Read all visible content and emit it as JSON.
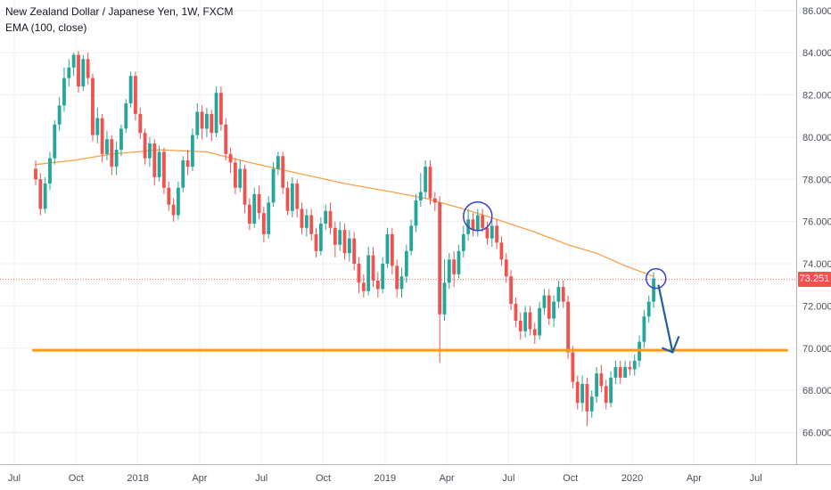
{
  "legend": {
    "title": "New Zealand Dollar / Japanese Yen, 1W, FXCM",
    "indicator": "EMA (100, close)"
  },
  "current_price": {
    "label": "73.251",
    "value": 73.251,
    "color": "#ef5350"
  },
  "colors": {
    "up": "#26a69a",
    "down": "#ef5350",
    "ema": "#f7a14a",
    "support": "#f59c1a",
    "circle": "#3b3fd0",
    "arrow": "#1d5ea8",
    "grid": "#eef0f3",
    "axis_text": "#4a4f5a"
  },
  "chart_data": {
    "type": "candlestick",
    "title": "New Zealand Dollar / Japanese Yen, 1W, FXCM",
    "ylim": [
      64.5,
      86.5
    ],
    "y_ticks": [
      "66.000",
      "68.000",
      "70.000",
      "72.000",
      "74.000",
      "76.000",
      "78.000",
      "80.000",
      "82.000",
      "84.000",
      "86.000"
    ],
    "x_ticks": [
      "Jul",
      "Oct",
      "2018",
      "Apr",
      "Jul",
      "Oct",
      "2019",
      "Apr",
      "Jul",
      "Oct",
      "2020",
      "Apr",
      "Jul"
    ],
    "x_range_weeks": [
      -7.5,
      160
    ],
    "candles": [
      [
        0,
        78.5,
        78.0,
        78.9,
        77.7
      ],
      [
        1,
        78.0,
        76.6,
        78.3,
        76.3
      ],
      [
        2,
        76.6,
        77.8,
        78.1,
        76.4
      ],
      [
        3,
        77.8,
        79.0,
        79.3,
        77.5
      ],
      [
        4,
        79.0,
        80.6,
        80.8,
        78.7
      ],
      [
        5,
        80.6,
        81.5,
        81.9,
        80.3
      ],
      [
        6,
        81.5,
        82.8,
        83.3,
        81.2
      ],
      [
        7,
        82.8,
        83.3,
        83.7,
        82.4
      ],
      [
        8,
        83.3,
        83.9,
        84.0,
        82.9
      ],
      [
        9,
        83.9,
        82.4,
        84.1,
        82.1
      ],
      [
        10,
        82.4,
        83.7,
        83.9,
        82.2
      ],
      [
        11,
        83.7,
        82.8,
        84.0,
        82.5
      ],
      [
        12,
        82.8,
        80.1,
        83.0,
        79.8
      ],
      [
        13,
        80.1,
        80.9,
        81.4,
        79.7
      ],
      [
        14,
        80.9,
        79.2,
        81.1,
        78.8
      ],
      [
        15,
        79.2,
        79.9,
        80.3,
        78.9
      ],
      [
        16,
        79.9,
        78.6,
        80.1,
        78.2
      ],
      [
        17,
        78.6,
        79.4,
        79.8,
        78.2
      ],
      [
        18,
        79.4,
        80.4,
        80.6,
        79.1
      ],
      [
        19,
        80.4,
        81.6,
        81.8,
        80.2
      ],
      [
        20,
        81.6,
        82.9,
        83.1,
        81.4
      ],
      [
        21,
        82.9,
        81.1,
        83.1,
        80.8
      ],
      [
        22,
        81.1,
        80.2,
        81.4,
        79.9
      ],
      [
        23,
        80.2,
        79.0,
        80.4,
        78.7
      ],
      [
        24,
        79.0,
        79.7,
        80.0,
        78.6
      ],
      [
        25,
        79.7,
        78.1,
        79.9,
        77.7
      ],
      [
        26,
        78.1,
        79.3,
        79.6,
        77.9
      ],
      [
        27,
        79.3,
        77.6,
        79.5,
        77.3
      ],
      [
        28,
        77.6,
        76.8,
        77.9,
        76.5
      ],
      [
        29,
        76.8,
        76.3,
        77.1,
        76.0
      ],
      [
        30,
        76.3,
        77.6,
        77.9,
        76.1
      ],
      [
        31,
        77.6,
        78.9,
        79.1,
        77.4
      ],
      [
        32,
        78.9,
        78.6,
        79.4,
        78.2
      ],
      [
        33,
        78.6,
        80.1,
        80.4,
        78.4
      ],
      [
        34,
        80.1,
        81.2,
        81.6,
        79.9
      ],
      [
        35,
        81.2,
        80.4,
        81.5,
        79.9
      ],
      [
        36,
        80.4,
        81.1,
        81.4,
        80.0
      ],
      [
        37,
        81.1,
        80.2,
        81.3,
        79.8
      ],
      [
        38,
        80.2,
        82.1,
        82.4,
        80.0
      ],
      [
        39,
        82.1,
        80.6,
        82.4,
        80.3
      ],
      [
        40,
        80.6,
        79.2,
        80.9,
        78.9
      ],
      [
        41,
        79.2,
        78.8,
        79.5,
        78.3
      ],
      [
        42,
        78.8,
        77.6,
        79.0,
        77.3
      ],
      [
        43,
        77.6,
        78.5,
        78.9,
        77.4
      ],
      [
        44,
        78.5,
        76.8,
        78.7,
        76.4
      ],
      [
        45,
        76.8,
        75.9,
        77.1,
        75.6
      ],
      [
        46,
        75.9,
        77.3,
        77.6,
        75.7
      ],
      [
        47,
        77.3,
        76.4,
        77.7,
        76.1
      ],
      [
        48,
        76.4,
        75.4,
        76.7,
        75.0
      ],
      [
        49,
        75.4,
        76.9,
        77.2,
        75.2
      ],
      [
        50,
        76.9,
        78.5,
        78.8,
        76.7
      ],
      [
        51,
        78.5,
        79.1,
        79.3,
        78.2
      ],
      [
        52,
        79.1,
        77.6,
        79.3,
        77.3
      ],
      [
        53,
        77.6,
        76.5,
        77.9,
        76.3
      ],
      [
        54,
        76.5,
        77.8,
        78.1,
        76.2
      ],
      [
        55,
        77.8,
        76.6,
        78.0,
        76.2
      ],
      [
        56,
        76.6,
        75.7,
        76.9,
        75.4
      ],
      [
        57,
        75.7,
        76.3,
        76.6,
        75.3
      ],
      [
        58,
        76.3,
        75.4,
        76.6,
        75.1
      ],
      [
        59,
        75.4,
        74.6,
        75.7,
        74.3
      ],
      [
        60,
        74.6,
        75.9,
        76.2,
        74.4
      ],
      [
        61,
        75.9,
        76.5,
        76.8,
        75.6
      ],
      [
        62,
        76.5,
        75.7,
        76.9,
        75.4
      ],
      [
        63,
        75.7,
        74.9,
        76.0,
        74.3
      ],
      [
        64,
        74.9,
        75.6,
        76.0,
        74.6
      ],
      [
        65,
        75.6,
        74.5,
        75.9,
        74.2
      ],
      [
        66,
        74.5,
        75.2,
        75.6,
        74.1
      ],
      [
        67,
        75.2,
        74.0,
        75.5,
        73.7
      ],
      [
        68,
        74.0,
        73.1,
        74.3,
        72.6
      ],
      [
        69,
        73.1,
        72.7,
        73.5,
        72.4
      ],
      [
        70,
        72.7,
        74.4,
        74.8,
        72.5
      ],
      [
        71,
        74.4,
        73.2,
        74.8,
        72.9
      ],
      [
        72,
        73.2,
        72.8,
        73.6,
        72.4
      ],
      [
        73,
        72.8,
        74.0,
        74.3,
        72.6
      ],
      [
        74,
        74.0,
        75.4,
        75.7,
        73.8
      ],
      [
        75,
        75.4,
        73.9,
        75.7,
        73.5
      ],
      [
        76,
        73.9,
        72.8,
        74.2,
        72.4
      ],
      [
        77,
        72.8,
        73.4,
        73.8,
        72.4
      ],
      [
        78,
        73.4,
        74.6,
        74.9,
        73.1
      ],
      [
        79,
        74.6,
        75.8,
        76.1,
        74.4
      ],
      [
        80,
        75.8,
        77.0,
        77.3,
        75.5
      ],
      [
        81,
        77.0,
        77.4,
        78.3,
        76.7
      ],
      [
        82,
        77.4,
        78.6,
        78.9,
        77.1
      ],
      [
        83,
        78.6,
        77.1,
        78.9,
        76.8
      ],
      [
        84,
        77.1,
        76.9,
        77.4,
        76.5
      ],
      [
        85,
        76.9,
        71.6,
        77.2,
        69.3
      ],
      [
        86,
        71.6,
        73.1,
        74.2,
        71.3
      ],
      [
        87,
        73.1,
        74.2,
        74.5,
        72.8
      ],
      [
        88,
        74.2,
        73.5,
        74.6,
        72.9
      ],
      [
        89,
        73.5,
        74.6,
        74.9,
        73.3
      ],
      [
        90,
        74.6,
        75.4,
        75.8,
        74.3
      ],
      [
        91,
        75.4,
        76.1,
        76.6,
        75.1
      ],
      [
        92,
        76.1,
        75.6,
        76.4,
        75.3
      ],
      [
        93,
        75.6,
        76.3,
        76.6,
        75.3
      ],
      [
        94,
        76.3,
        75.7,
        76.6,
        75.5
      ],
      [
        95,
        75.7,
        75.2,
        76.0,
        74.9
      ],
      [
        96,
        75.2,
        75.8,
        76.1,
        74.8
      ],
      [
        97,
        75.8,
        75.0,
        76.1,
        74.7
      ],
      [
        98,
        75.0,
        74.2,
        75.3,
        73.9
      ],
      [
        99,
        74.2,
        73.4,
        74.5,
        73.1
      ],
      [
        100,
        73.4,
        72.1,
        73.7,
        71.8
      ],
      [
        101,
        72.1,
        71.3,
        72.4,
        71.0
      ],
      [
        102,
        71.3,
        70.8,
        71.7,
        70.4
      ],
      [
        103,
        70.8,
        71.7,
        72.0,
        70.5
      ],
      [
        104,
        71.7,
        70.9,
        72.0,
        70.6
      ],
      [
        105,
        70.9,
        70.6,
        71.2,
        70.2
      ],
      [
        106,
        70.6,
        71.9,
        72.2,
        70.4
      ],
      [
        107,
        71.9,
        72.5,
        72.8,
        71.6
      ],
      [
        108,
        72.5,
        71.4,
        72.8,
        71.1
      ],
      [
        109,
        71.4,
        72.2,
        72.5,
        71.0
      ],
      [
        110,
        72.2,
        72.9,
        73.2,
        71.9
      ],
      [
        111,
        72.9,
        72.2,
        73.2,
        71.9
      ],
      [
        112,
        72.2,
        69.8,
        72.5,
        69.5
      ],
      [
        113,
        69.8,
        68.4,
        70.1,
        68.1
      ],
      [
        114,
        68.4,
        67.4,
        68.7,
        67.1
      ],
      [
        115,
        67.4,
        68.3,
        68.7,
        67.0
      ],
      [
        116,
        68.3,
        67.0,
        68.6,
        66.3
      ],
      [
        117,
        67.0,
        67.7,
        68.0,
        66.7
      ],
      [
        118,
        67.7,
        68.8,
        69.1,
        67.4
      ],
      [
        119,
        68.8,
        68.2,
        69.2,
        67.9
      ],
      [
        120,
        68.2,
        67.4,
        68.5,
        67.1
      ],
      [
        121,
        67.4,
        68.6,
        68.9,
        67.2
      ],
      [
        122,
        68.6,
        69.1,
        69.4,
        68.3
      ],
      [
        123,
        69.1,
        68.6,
        69.4,
        68.3
      ],
      [
        124,
        68.6,
        69.1,
        69.4,
        68.8
      ],
      [
        125,
        69.1,
        69.0,
        69.4,
        68.7
      ],
      [
        126,
        69.0,
        69.4,
        69.7,
        68.7
      ],
      [
        127,
        69.4,
        70.3,
        70.6,
        69.1
      ],
      [
        128,
        70.3,
        71.5,
        71.8,
        70.0
      ],
      [
        129,
        71.5,
        72.2,
        72.5,
        71.2
      ],
      [
        130,
        72.2,
        73.3,
        73.6,
        71.9
      ]
    ],
    "ema": [
      [
        0,
        78.7
      ],
      [
        8,
        78.9
      ],
      [
        16,
        79.2
      ],
      [
        26,
        79.4
      ],
      [
        36,
        79.3
      ],
      [
        45,
        78.8
      ],
      [
        55,
        78.3
      ],
      [
        65,
        77.8
      ],
      [
        75,
        77.4
      ],
      [
        82,
        77.1
      ],
      [
        90,
        76.6
      ],
      [
        97,
        76.1
      ],
      [
        105,
        75.5
      ],
      [
        112,
        74.9
      ],
      [
        118,
        74.5
      ],
      [
        124,
        73.9
      ],
      [
        130,
        73.4
      ]
    ],
    "support_line": {
      "x": [
        -0.5,
        158
      ],
      "y": 69.9
    },
    "annotations": {
      "circles": [
        {
          "x": 93,
          "y": 76.25
        },
        {
          "x": 130.5,
          "y": 73.3
        }
      ],
      "arrow": {
        "from": [
          131,
          73.0
        ],
        "to": [
          134,
          69.8
        ]
      }
    }
  }
}
